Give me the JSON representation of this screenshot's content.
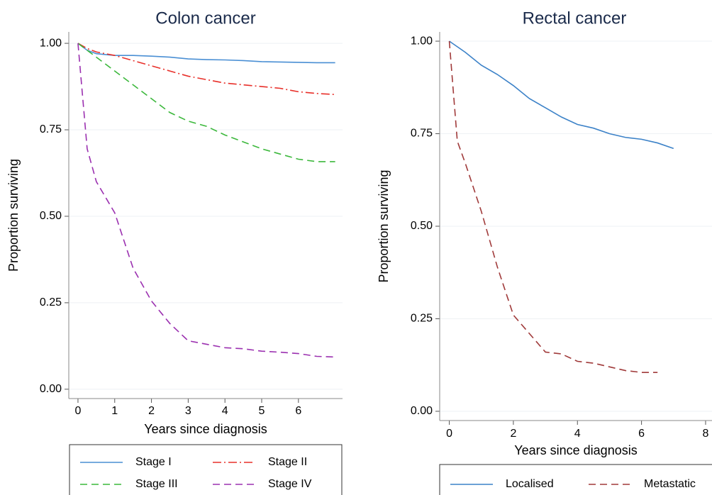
{
  "chart_data": [
    {
      "type": "line",
      "title": "Colon cancer",
      "x_label": "Years since diagnosis",
      "y_label": "Proportion surviving",
      "x": [
        0,
        0.25,
        0.5,
        1,
        1.5,
        2,
        2.5,
        3,
        3.5,
        4,
        4.5,
        5,
        5.5,
        6,
        6.5,
        7
      ],
      "series": [
        {
          "name": "Stage I",
          "color": "#4a8fd4",
          "dash": "solid",
          "values": [
            1,
            0.98,
            0.97,
            0.965,
            0.965,
            0.963,
            0.96,
            0.955,
            0.953,
            0.952,
            0.95,
            0.947,
            0.946,
            0.945,
            0.944,
            0.944
          ]
        },
        {
          "name": "Stage II",
          "color": "#e8302a",
          "dash": "dash-dot",
          "values": [
            1,
            0.985,
            0.975,
            0.965,
            0.95,
            0.935,
            0.92,
            0.905,
            0.895,
            0.885,
            0.88,
            0.875,
            0.87,
            0.86,
            0.855,
            0.852
          ]
        },
        {
          "name": "Stage III",
          "color": "#3cb83c",
          "dash": "dash",
          "values": [
            1,
            0.98,
            0.96,
            0.92,
            0.88,
            0.84,
            0.8,
            0.775,
            0.76,
            0.735,
            0.715,
            0.695,
            0.68,
            0.665,
            0.658,
            0.658
          ]
        },
        {
          "name": "Stage IV",
          "color": "#9b30b0",
          "dash": "dash",
          "values": [
            1,
            0.695,
            0.6,
            0.51,
            0.35,
            0.255,
            0.19,
            0.14,
            0.13,
            0.12,
            0.117,
            0.11,
            0.107,
            0.103,
            0.095,
            0.093
          ]
        }
      ],
      "xlim": [
        -0.25,
        7.2
      ],
      "ylim": [
        -0.027,
        1.033
      ],
      "xticks": [
        0,
        1,
        2,
        3,
        4,
        5,
        6
      ],
      "yticks": [
        {
          "value": 0,
          "label": "0.00"
        },
        {
          "value": 0.25,
          "label": "0.25"
        },
        {
          "value": 0.5,
          "label": "0.50"
        },
        {
          "value": 0.75,
          "label": "0.75"
        },
        {
          "value": 1,
          "label": "1.00"
        }
      ],
      "grid": true,
      "legend": "bottom"
    },
    {
      "type": "line",
      "title": "Rectal cancer",
      "x_label": "Years since diagnosis",
      "y_label": "Proportion surviving",
      "x": [
        0,
        0.25,
        0.5,
        1,
        1.5,
        2,
        2.5,
        3,
        3.5,
        4,
        4.5,
        5,
        5.5,
        6,
        6.5,
        7
      ],
      "series": [
        {
          "name": "Localised",
          "color": "#3c82c8",
          "dash": "solid",
          "values": [
            1,
            0.985,
            0.97,
            0.935,
            0.91,
            0.88,
            0.845,
            0.82,
            0.795,
            0.775,
            0.765,
            0.75,
            0.74,
            0.735,
            0.725,
            0.71
          ]
        },
        {
          "name": "Metastatic",
          "color": "#a03a3a",
          "dash": "dash",
          "values": [
            1,
            0.73,
            0.67,
            0.54,
            0.39,
            0.26,
            0.21,
            0.16,
            0.155,
            0.135,
            0.13,
            0.12,
            0.11,
            0.105,
            0.105,
            null
          ]
        }
      ],
      "xlim": [
        -0.3,
        8.2
      ],
      "ylim": [
        -0.025,
        1.025
      ],
      "xticks": [
        0,
        2,
        4,
        6,
        8
      ],
      "yticks": [
        {
          "value": 0,
          "label": "0.00"
        },
        {
          "value": 0.25,
          "label": "0.25"
        },
        {
          "value": 0.5,
          "label": "0.50"
        },
        {
          "value": 0.75,
          "label": "0.75"
        },
        {
          "value": 1,
          "label": "1.00"
        }
      ],
      "grid": true,
      "legend": "bottom"
    }
  ]
}
